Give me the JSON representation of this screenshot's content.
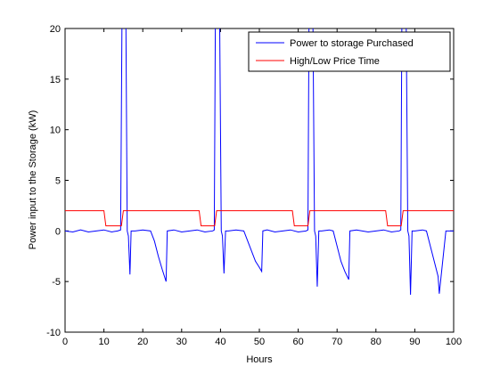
{
  "chart_data": {
    "type": "line",
    "xlabel": "Hours",
    "ylabel": "Power input to the Storage (kW)",
    "xlim": [
      0,
      100
    ],
    "ylim": [
      -10,
      20
    ],
    "xticks": [
      0,
      10,
      20,
      30,
      40,
      50,
      60,
      70,
      80,
      90,
      100
    ],
    "yticks": [
      -10,
      -5,
      0,
      5,
      10,
      15,
      20
    ],
    "legend": "upper right",
    "series": [
      {
        "name": "Power to storage Purchased",
        "color": "#0000ff",
        "x": [
          0,
          2,
          4,
          6,
          8,
          10,
          12,
          13.5,
          14.3,
          14.8,
          15.5,
          16,
          16.3,
          16.7,
          17,
          18,
          20,
          22,
          23,
          24,
          25,
          26,
          26.3,
          28,
          30,
          32,
          34,
          36,
          38,
          38.4,
          38.8,
          39.6,
          40.2,
          40.5,
          40.9,
          41.3,
          42,
          44,
          46,
          47,
          48,
          49,
          50,
          50.6,
          50.9,
          52,
          54,
          56,
          58,
          60,
          62,
          62.5,
          62.9,
          63.6,
          64.2,
          64.5,
          64.9,
          65.3,
          66,
          68,
          69,
          70,
          71,
          72,
          73,
          73.3,
          75,
          78,
          80,
          82,
          84,
          86,
          86.4,
          86.8,
          87.6,
          88.2,
          88.5,
          88.9,
          89.3,
          90,
          92,
          93,
          94,
          95,
          96,
          96.3,
          98,
          100
        ],
        "values": [
          0,
          -0.1,
          0.1,
          -0.1,
          0,
          0.1,
          -0.1,
          0,
          0.1,
          30,
          30,
          0,
          -0.5,
          -4.3,
          0,
          0,
          0.1,
          0,
          -1,
          -2.5,
          -3.8,
          -5,
          0,
          0.1,
          -0.1,
          0,
          0.1,
          -0.1,
          0,
          0.1,
          30,
          30,
          0,
          -0.5,
          -4.2,
          0,
          0,
          0.1,
          0,
          -1,
          -2,
          -3,
          -3.6,
          -4,
          0,
          0.1,
          -0.1,
          0,
          0.1,
          -0.1,
          0,
          0.1,
          30,
          30,
          0,
          -0.5,
          -5.5,
          0,
          0,
          0.1,
          0,
          -1.5,
          -3,
          -4,
          -4.8,
          0,
          0.1,
          -0.1,
          0,
          0.1,
          -0.1,
          0,
          0.1,
          30,
          30,
          0,
          -0.5,
          -6.3,
          0,
          0,
          0.1,
          0,
          -1.5,
          -3,
          -4.5,
          -6.2,
          0,
          0
        ]
      },
      {
        "name": "High/Low Price Time",
        "color": "#ff0000",
        "x": [
          0,
          10,
          10.5,
          14.5,
          15,
          34.5,
          35,
          38.5,
          39,
          58.5,
          59,
          62.5,
          63,
          82.5,
          83,
          86.5,
          87,
          100
        ],
        "values": [
          2,
          2,
          0.5,
          0.5,
          2,
          2,
          0.5,
          0.5,
          2,
          2,
          0.5,
          0.5,
          2,
          2,
          0.5,
          0.5,
          2,
          2
        ]
      }
    ]
  }
}
